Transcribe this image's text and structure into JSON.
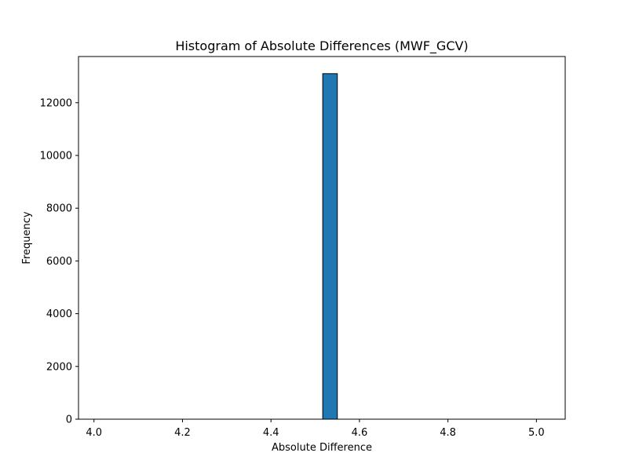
{
  "chart_data": {
    "type": "bar",
    "title": "Histogram of Absolute Differences (MWF_GCV)",
    "xlabel": "Absolute Difference",
    "ylabel": "Frequency",
    "xlim": [
      3.965,
      5.065
    ],
    "ylim": [
      0,
      13750
    ],
    "x_ticks": [
      4.0,
      4.2,
      4.4,
      4.6,
      4.8,
      5.0
    ],
    "x_tick_labels": [
      "4.0",
      "4.2",
      "4.4",
      "4.6",
      "4.8",
      "5.0"
    ],
    "y_ticks": [
      0,
      2000,
      4000,
      6000,
      8000,
      10000,
      12000
    ],
    "y_tick_labels": [
      "0",
      "2000",
      "4000",
      "6000",
      "8000",
      "10000",
      "12000"
    ],
    "bins": [
      {
        "x_start": 4.517,
        "x_end": 4.55,
        "value": 13100
      }
    ],
    "flat_bins_range": [
      4.0,
      5.0
    ],
    "grid": false,
    "colors": {
      "bar_fill": "#1f77b4",
      "bar_edge": "#000000",
      "axes": "#000000"
    }
  }
}
